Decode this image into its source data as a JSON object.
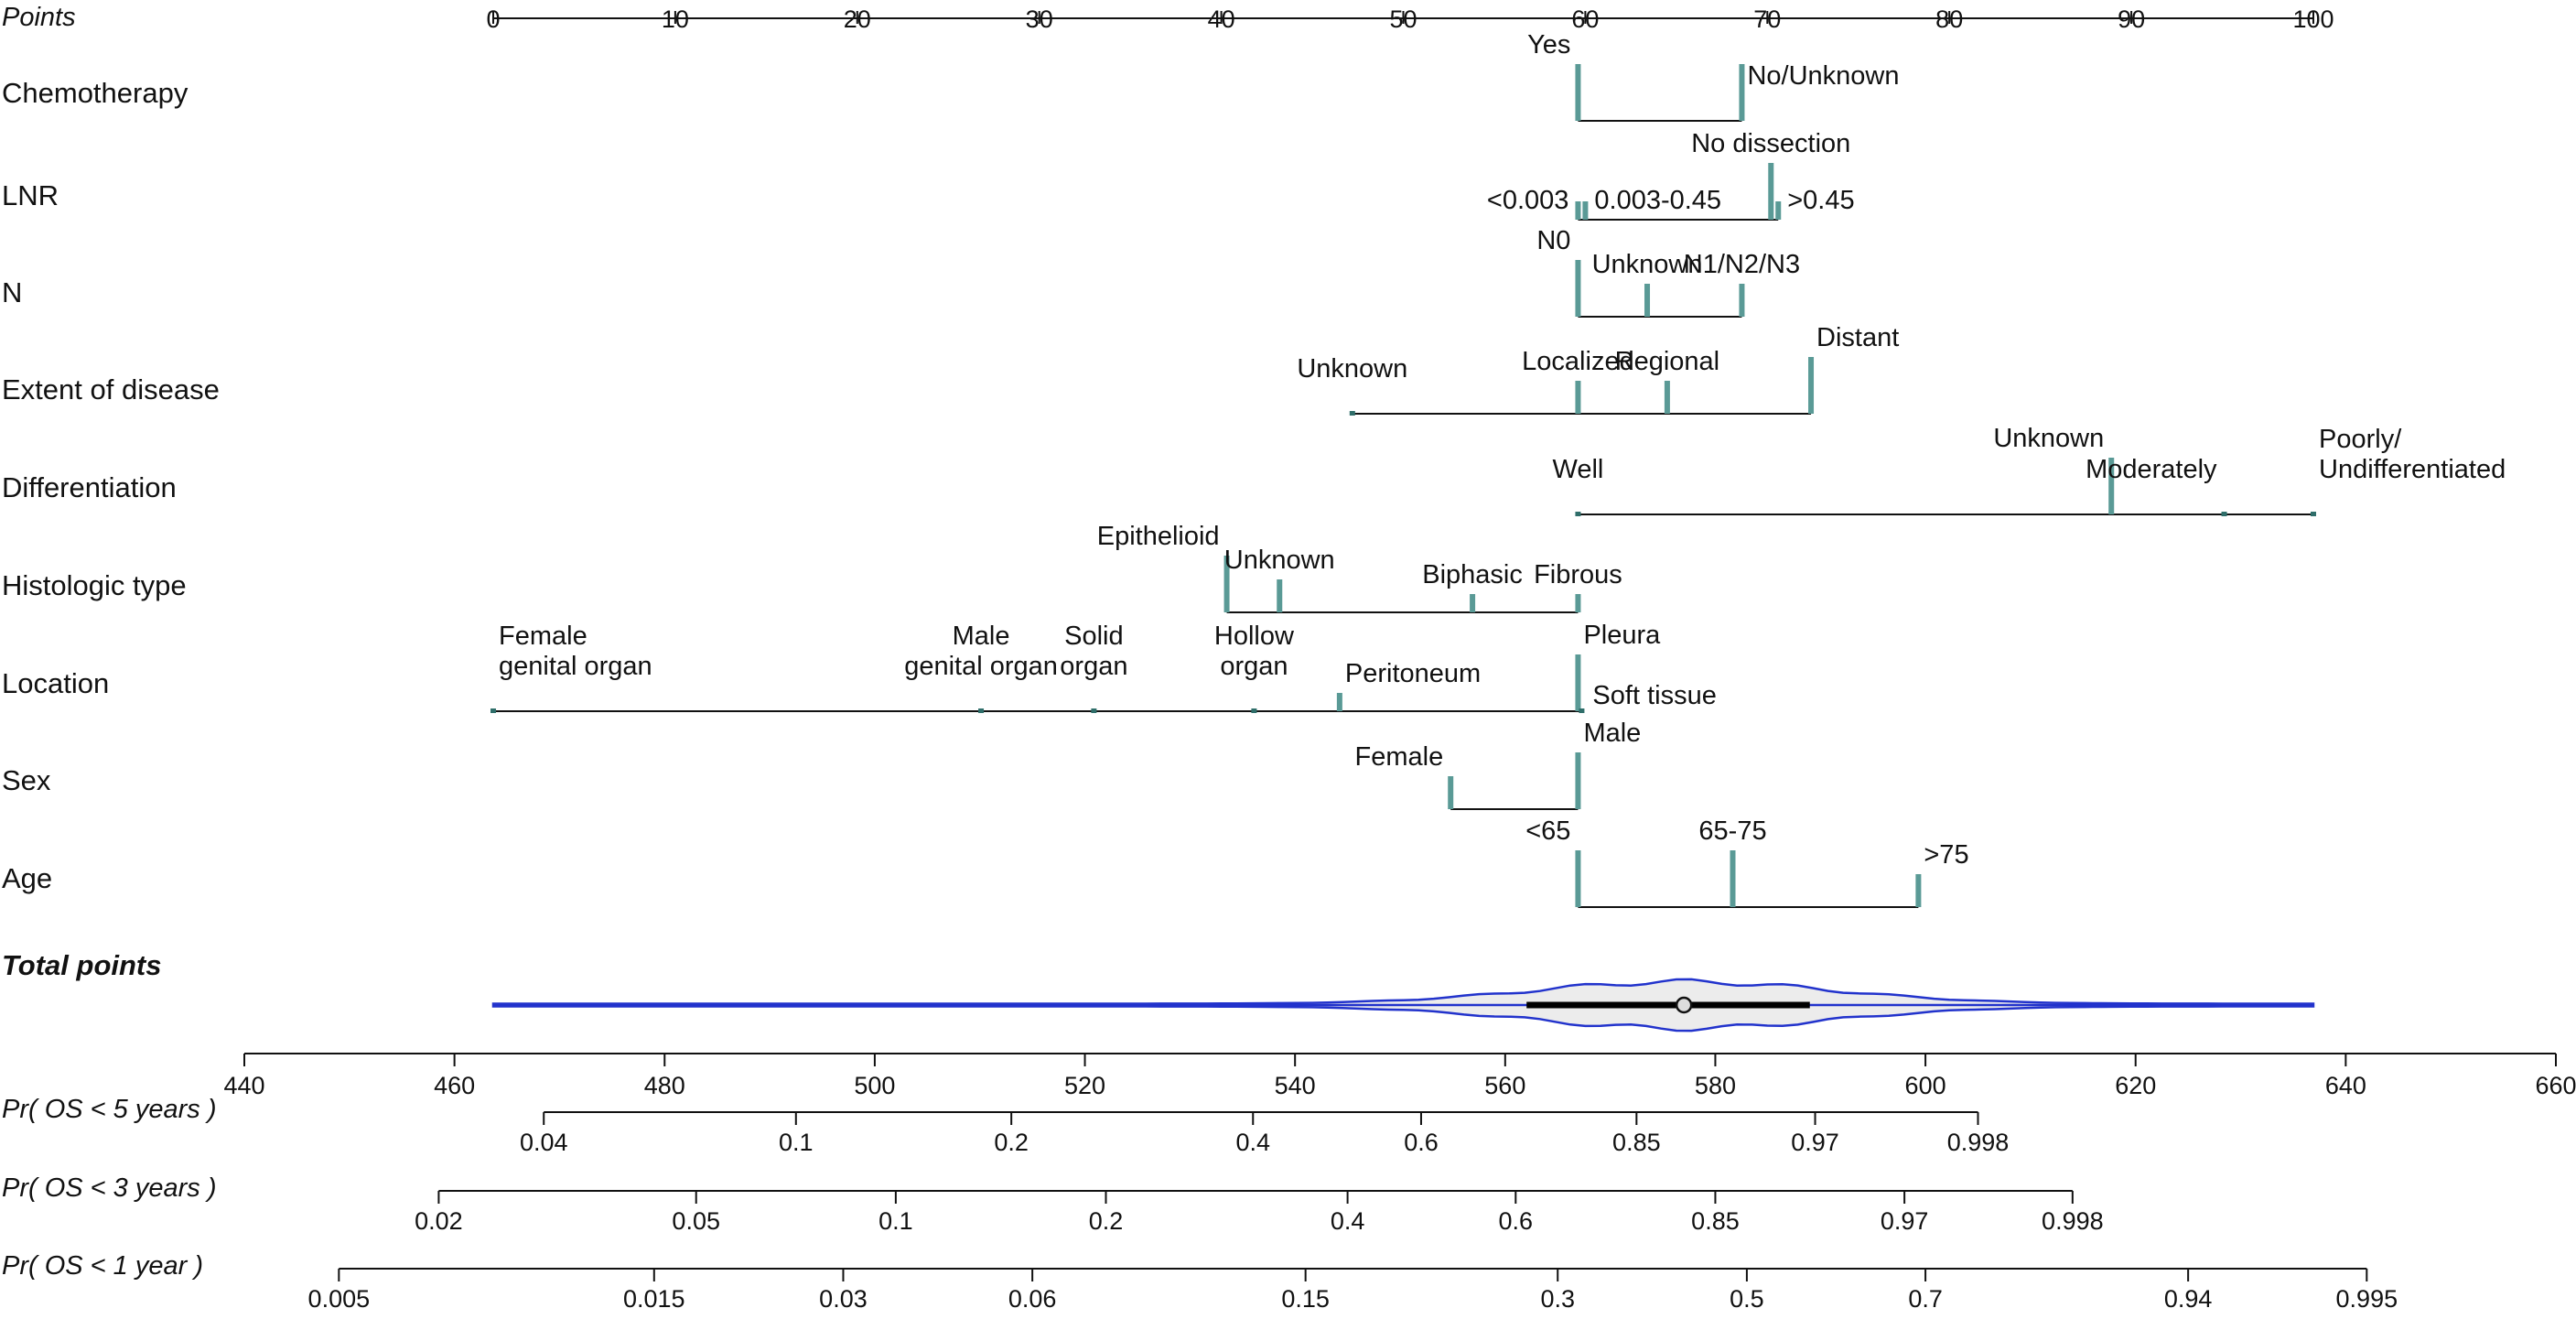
{
  "chart_data": {
    "type": "nomogram",
    "points_axis": {
      "label": "Points",
      "min": 0,
      "max": 100,
      "ticks": [
        0,
        10,
        20,
        30,
        40,
        50,
        60,
        70,
        80,
        90,
        100
      ],
      "tick_labels": [
        "0",
        "10",
        "20",
        "30",
        "40",
        "50",
        "60",
        "70",
        "80",
        "90",
        "100"
      ]
    },
    "variables": [
      {
        "name": "Chemotherapy",
        "levels": [
          {
            "label": "Yes",
            "points": 59.6,
            "mark": "tall",
            "label_side": "left",
            "label_pos": "above"
          },
          {
            "label": "No/Unknown",
            "points": 68.6,
            "mark": "tall",
            "label_side": "right",
            "label_pos": "above"
          }
        ]
      },
      {
        "name": "LNR",
        "levels": [
          {
            "label": "<0.003",
            "points": 59.6,
            "mark": "short",
            "label_side": "left",
            "label_pos": "side"
          },
          {
            "label": "0.003-0.45",
            "points": 60.0,
            "mark": "short",
            "label_side": "right",
            "label_pos": "side"
          },
          {
            "label": "No dissection",
            "points": 70.2,
            "mark": "tall",
            "label_side": "center",
            "label_pos": "above"
          },
          {
            "label": ">0.45",
            "points": 70.6,
            "mark": "short",
            "label_side": "right",
            "label_pos": "side"
          }
        ]
      },
      {
        "name": "N",
        "levels": [
          {
            "label": "N0",
            "points": 59.6,
            "mark": "tall",
            "label_side": "left",
            "label_pos": "above"
          },
          {
            "label": "Unknown",
            "points": 63.4,
            "mark": "medium",
            "label_side": "center",
            "label_pos": "above"
          },
          {
            "label": "N1/N2/N3",
            "points": 68.6,
            "mark": "medium",
            "label_side": "center",
            "label_pos": "above"
          }
        ]
      },
      {
        "name": "Extent of disease",
        "levels": [
          {
            "label": "Unknown",
            "points": 47.2,
            "mark": "dot",
            "label_side": "center",
            "label_pos": "above"
          },
          {
            "label": "Localized",
            "points": 59.6,
            "mark": "medium",
            "label_side": "center",
            "label_pos": "above"
          },
          {
            "label": "Regional",
            "points": 64.5,
            "mark": "medium",
            "label_side": "center",
            "label_pos": "above"
          },
          {
            "label": "Distant",
            "points": 72.4,
            "mark": "tall",
            "label_side": "right",
            "label_pos": "above"
          }
        ]
      },
      {
        "name": "Differentiation",
        "levels": [
          {
            "label": "Well",
            "points": 59.6,
            "mark": "dot",
            "label_side": "center",
            "label_pos": "above"
          },
          {
            "label": "Unknown",
            "points": 88.9,
            "mark": "tall",
            "label_side": "left",
            "label_pos": "above"
          },
          {
            "label": "Moderately",
            "points": 95.1,
            "mark": "dot",
            "label_side": "left",
            "label_pos": "above"
          },
          {
            "label": "Poorly/\nUndifferentiated",
            "points": 100,
            "mark": "dot",
            "label_side": "right",
            "label_pos": "above"
          }
        ]
      },
      {
        "name": "Histologic type",
        "levels": [
          {
            "label": "Epithelioid",
            "points": 40.3,
            "mark": "tall",
            "label_side": "left",
            "label_pos": "above"
          },
          {
            "label": "Unknown",
            "points": 43.2,
            "mark": "medium",
            "label_side": "center",
            "label_pos": "above"
          },
          {
            "label": "Biphasic",
            "points": 53.8,
            "mark": "short",
            "label_side": "center",
            "label_pos": "above"
          },
          {
            "label": "Fibrous",
            "points": 59.6,
            "mark": "short",
            "label_side": "center",
            "label_pos": "above"
          }
        ]
      },
      {
        "name": "Location",
        "levels": [
          {
            "label": "Female\ngenital organ",
            "points": 0,
            "mark": "dot",
            "label_side": "right",
            "label_pos": "above"
          },
          {
            "label": "Male\ngenital organ",
            "points": 26.8,
            "mark": "dot",
            "label_side": "center",
            "label_pos": "above"
          },
          {
            "label": "Solid\norgan",
            "points": 33.0,
            "mark": "dot",
            "label_side": "center",
            "label_pos": "above"
          },
          {
            "label": "Hollow\norgan",
            "points": 41.8,
            "mark": "dot",
            "label_side": "center",
            "label_pos": "above"
          },
          {
            "label": "Peritoneum",
            "points": 46.5,
            "mark": "short",
            "label_side": "right",
            "label_pos": "above"
          },
          {
            "label": "Pleura",
            "points": 59.6,
            "mark": "tall",
            "label_side": "right",
            "label_pos": "above"
          },
          {
            "label": "Soft tissue",
            "points": 59.8,
            "mark": "dot",
            "label_side": "right",
            "label_pos": "side"
          }
        ]
      },
      {
        "name": "Sex",
        "levels": [
          {
            "label": "Female",
            "points": 52.6,
            "mark": "medium",
            "label_side": "left",
            "label_pos": "above"
          },
          {
            "label": "Male",
            "points": 59.6,
            "mark": "tall",
            "label_side": "right",
            "label_pos": "above"
          }
        ]
      },
      {
        "name": "Age",
        "levels": [
          {
            "label": "<65",
            "points": 59.6,
            "mark": "tall",
            "label_side": "left",
            "label_pos": "above"
          },
          {
            "label": "65-75",
            "points": 68.1,
            "mark": "tall",
            "label_side": "center",
            "label_pos": "above"
          },
          {
            "label": ">75",
            "points": 78.3,
            "mark": "medium",
            "label_side": "right",
            "label_pos": "above"
          }
        ]
      }
    ],
    "total_points": {
      "label": "Total points",
      "min": 440,
      "max": 660,
      "ticks": [
        440,
        460,
        480,
        500,
        520,
        540,
        560,
        580,
        600,
        620,
        640,
        660
      ],
      "tick_labels": [
        "440",
        "460",
        "480",
        "500",
        "520",
        "540",
        "560",
        "580",
        "600",
        "620",
        "640",
        "660"
      ],
      "distribution_range": [
        463.5,
        637
      ],
      "iqr": [
        562,
        589
      ],
      "median": 577
    },
    "probability_axes": [
      {
        "label": "Pr( OS < 5 years )",
        "ticks": [
          {
            "label": "0.04",
            "total": 468.5
          },
          {
            "label": "0.1",
            "total": 492.5
          },
          {
            "label": "0.2",
            "total": 513
          },
          {
            "label": "0.4",
            "total": 536
          },
          {
            "label": "0.6",
            "total": 552
          },
          {
            "label": "0.85",
            "total": 572.5
          },
          {
            "label": "0.97",
            "total": 589.5
          },
          {
            "label": "0.998",
            "total": 605
          }
        ]
      },
      {
        "label": "Pr( OS < 3 years )",
        "ticks": [
          {
            "label": "0.02",
            "total": 458.5
          },
          {
            "label": "0.05",
            "total": 483
          },
          {
            "label": "0.1",
            "total": 502
          },
          {
            "label": "0.2",
            "total": 522
          },
          {
            "label": "0.4",
            "total": 545
          },
          {
            "label": "0.6",
            "total": 561
          },
          {
            "label": "0.85",
            "total": 580
          },
          {
            "label": "0.97",
            "total": 598
          },
          {
            "label": "0.998",
            "total": 614
          }
        ]
      },
      {
        "label": "Pr( OS < 1 year )",
        "ticks": [
          {
            "label": "0.005",
            "total": 449
          },
          {
            "label": "0.015",
            "total": 479
          },
          {
            "label": "0.03",
            "total": 497
          },
          {
            "label": "0.06",
            "total": 515
          },
          {
            "label": "0.15",
            "total": 541
          },
          {
            "label": "0.3",
            "total": 565
          },
          {
            "label": "0.5",
            "total": 583
          },
          {
            "label": "0.7",
            "total": 600
          },
          {
            "label": "0.94",
            "total": 625
          },
          {
            "label": "0.995",
            "total": 642
          }
        ]
      }
    ]
  }
}
